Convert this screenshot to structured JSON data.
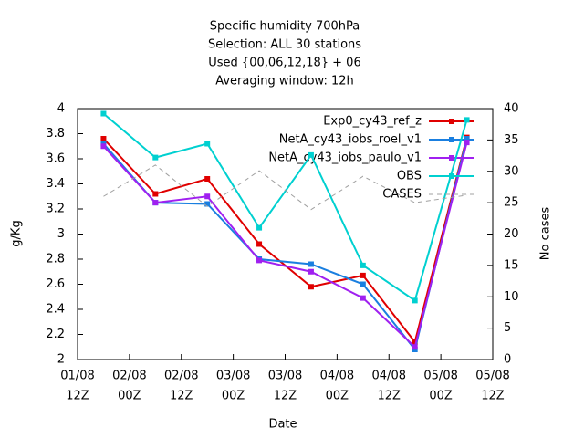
{
  "chart_data": {
    "type": "line",
    "title": [
      "Specific humidity 700hPa",
      "Selection: ALL      30 stations",
      "Used {00,06,12,18} + 06",
      "Averaging window: 12h"
    ],
    "xlabel": "Date",
    "ylabel": "g/Kg",
    "y2label": "No cases",
    "x": [
      6,
      18,
      30,
      42,
      54,
      66,
      78,
      90
    ],
    "xlim": [
      0,
      96
    ],
    "xticks": [
      {
        "value": 0,
        "label": [
          "01/08",
          "12Z"
        ]
      },
      {
        "value": 12,
        "label": [
          "02/08",
          "00Z"
        ]
      },
      {
        "value": 24,
        "label": [
          "02/08",
          "12Z"
        ]
      },
      {
        "value": 36,
        "label": [
          "03/08",
          "00Z"
        ]
      },
      {
        "value": 48,
        "label": [
          "03/08",
          "12Z"
        ]
      },
      {
        "value": 60,
        "label": [
          "04/08",
          "00Z"
        ]
      },
      {
        "value": 72,
        "label": [
          "04/08",
          "12Z"
        ]
      },
      {
        "value": 84,
        "label": [
          "05/08",
          "00Z"
        ]
      },
      {
        "value": 96,
        "label": [
          "05/08",
          "12Z"
        ]
      }
    ],
    "ylim": [
      2,
      4
    ],
    "yticks": [
      2,
      2.2,
      2.4,
      2.6,
      2.8,
      3,
      3.2,
      3.4,
      3.6,
      3.8,
      4
    ],
    "y2lim": [
      0,
      40
    ],
    "y2ticks": [
      0,
      5,
      10,
      15,
      20,
      25,
      30,
      35,
      40
    ],
    "grid": false,
    "series": [
      {
        "name": "Exp0_cy43_ref_z",
        "color": "#e00000",
        "marker": true,
        "values": [
          3.76,
          3.32,
          3.44,
          2.92,
          2.58,
          2.67,
          2.14,
          3.77
        ]
      },
      {
        "name": "NetA_cy43_iobs_roel_v1",
        "color": "#1a7fe0",
        "marker": true,
        "values": [
          3.72,
          3.25,
          3.24,
          2.8,
          2.76,
          2.6,
          2.08,
          3.76
        ]
      },
      {
        "name": "NetA_cy43_iobs_paulo_v1",
        "color": "#a020f0",
        "marker": true,
        "values": [
          3.7,
          3.25,
          3.3,
          2.79,
          2.7,
          2.49,
          2.1,
          3.73
        ]
      },
      {
        "name": "OBS",
        "color": "#00d0d0",
        "marker": true,
        "values": [
          3.96,
          3.61,
          3.72,
          3.05,
          3.63,
          2.75,
          2.47,
          3.91
        ]
      },
      {
        "name": "CASES",
        "color": "#a0a0a0",
        "marker": false,
        "dashed": true,
        "axis": "y2",
        "values": [
          26,
          31,
          24.4,
          30.1,
          23.9,
          29.2,
          25,
          26.2
        ]
      }
    ]
  }
}
